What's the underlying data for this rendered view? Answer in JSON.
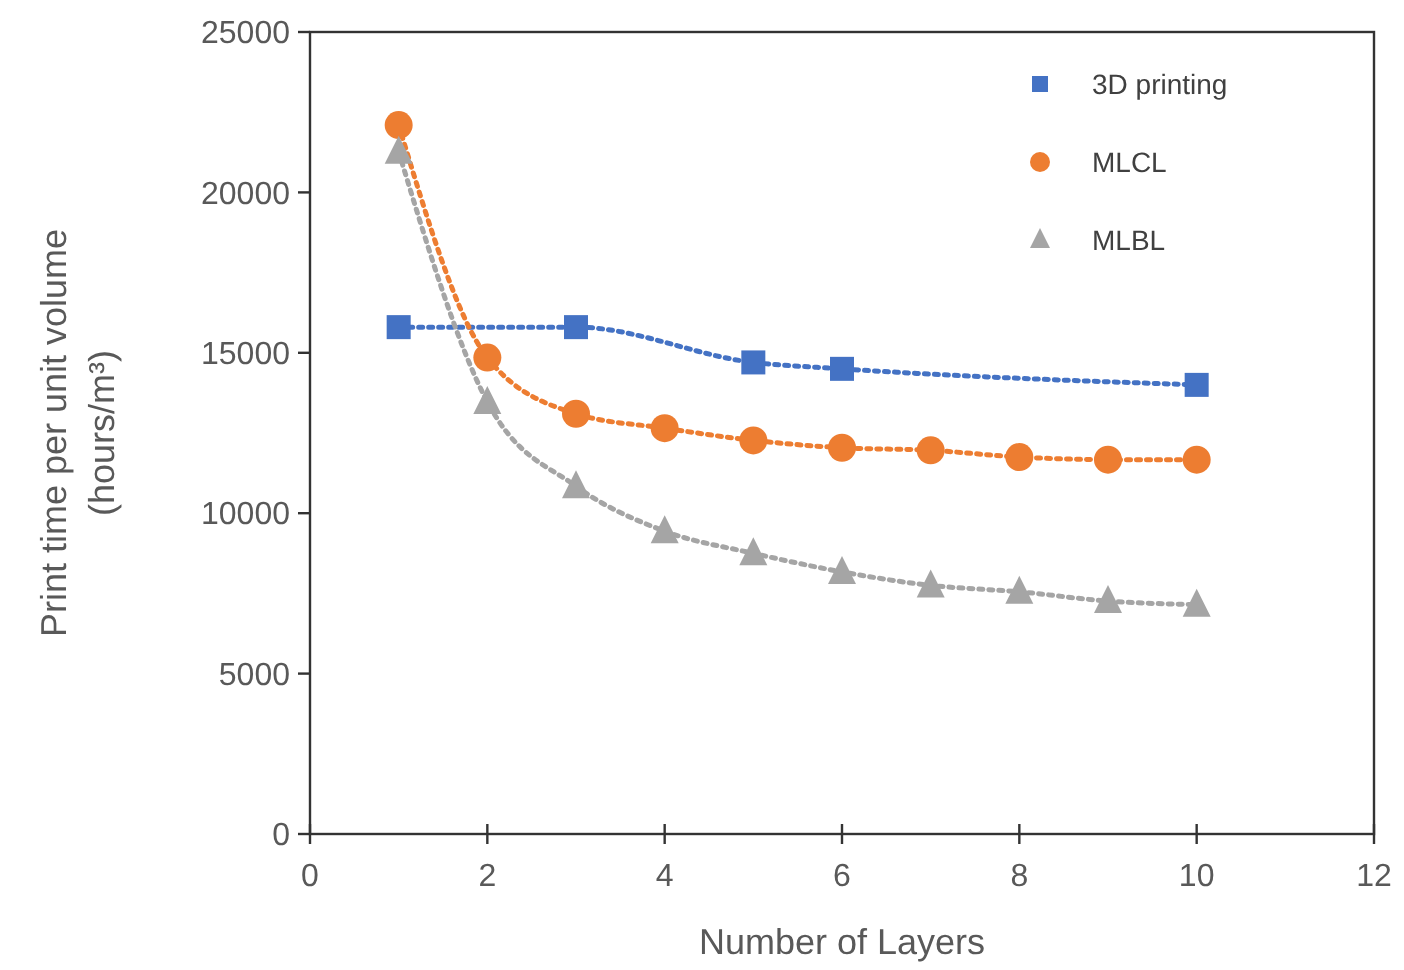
{
  "chart_data": {
    "type": "line",
    "xlabel": "Number of Layers",
    "ylabel": "Print time per unit volume\n(hours/m³)",
    "xlim": [
      0,
      12
    ],
    "xticks": [
      0,
      2,
      4,
      6,
      8,
      10,
      12
    ],
    "ylim": [
      0,
      25000
    ],
    "yticks": [
      0,
      5000,
      10000,
      15000,
      20000,
      25000
    ],
    "grid": false,
    "legend": "top right",
    "line_style": "dotted",
    "series": [
      {
        "name": "3D printing",
        "color": "#4472c4",
        "marker": "square",
        "x": [
          1,
          3,
          5,
          6,
          10
        ],
        "values": [
          15800,
          15800,
          14700,
          14500,
          14000
        ]
      },
      {
        "name": "MLCL",
        "color": "#ed7d31",
        "marker": "circle",
        "x": [
          1,
          2,
          3,
          4,
          5,
          6,
          7,
          8,
          9,
          10
        ],
        "values": [
          22100,
          14850,
          13100,
          12650,
          12270,
          12040,
          11960,
          11750,
          11670,
          11670
        ]
      },
      {
        "name": "MLBL",
        "color": "#a5a5a5",
        "marker": "triangle",
        "x": [
          1,
          2,
          3,
          4,
          5,
          6,
          7,
          8,
          9,
          10
        ],
        "values": [
          21270,
          13470,
          10840,
          9440,
          8750,
          8170,
          7750,
          7550,
          7260,
          7150
        ]
      }
    ]
  }
}
